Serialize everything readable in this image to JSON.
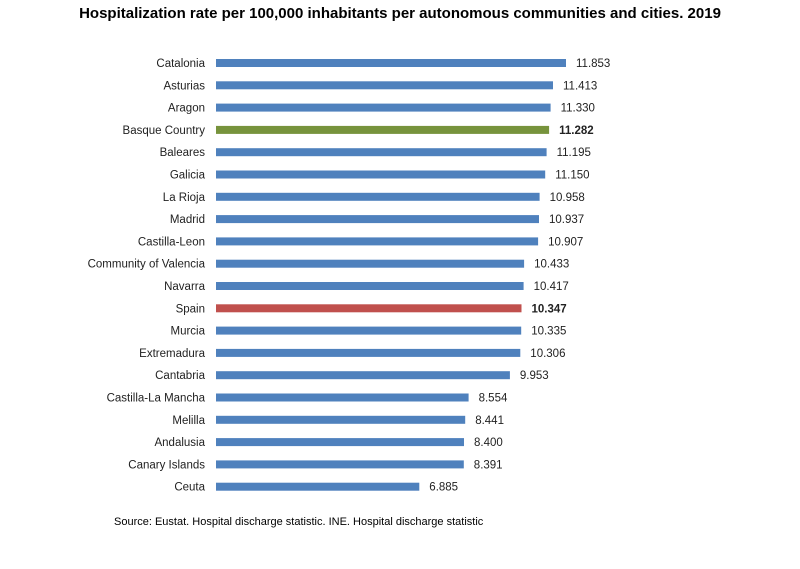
{
  "chart_data": {
    "type": "bar",
    "orientation": "horizontal",
    "title": "Hospitalization rate per 100,000 inhabitants per autonomous communities and cities. 2019",
    "source": "Source: Eustat. Hospital discharge statistic. INE. Hospital discharge statistic",
    "xlim": [
      0,
      12000
    ],
    "grid": false,
    "legend": "none",
    "colors": {
      "default": "#4F81BD",
      "basque_country": "#77933C",
      "spain": "#C0504D"
    },
    "categories": [
      "Catalonia",
      "Asturias",
      "Aragon",
      "Basque Country",
      "Baleares",
      "Galicia",
      "La Rioja",
      "Madrid",
      "Castilla-Leon",
      "Community of Valencia",
      "Navarra",
      "Spain",
      "Murcia",
      "Extremadura",
      "Cantabria",
      "Castilla-La Mancha",
      "Melilla",
      "Andalusia",
      "Canary Islands",
      "Ceuta"
    ],
    "values": [
      11853,
      11413,
      11330,
      11282,
      11195,
      11150,
      10958,
      10937,
      10907,
      10433,
      10417,
      10347,
      10335,
      10306,
      9953,
      8554,
      8441,
      8400,
      8391,
      6885
    ],
    "value_labels": [
      "11.853",
      "11.413",
      "11.330",
      "11.282",
      "11.195",
      "11.150",
      "10.958",
      "10.937",
      "10.907",
      "10.433",
      "10.417",
      "10.347",
      "10.335",
      "10.306",
      "9.953",
      "8.554",
      "8.441",
      "8.400",
      "8.391",
      "6.885"
    ],
    "highlighted": {
      "Basque Country": "basque_country",
      "Spain": "spain"
    }
  }
}
